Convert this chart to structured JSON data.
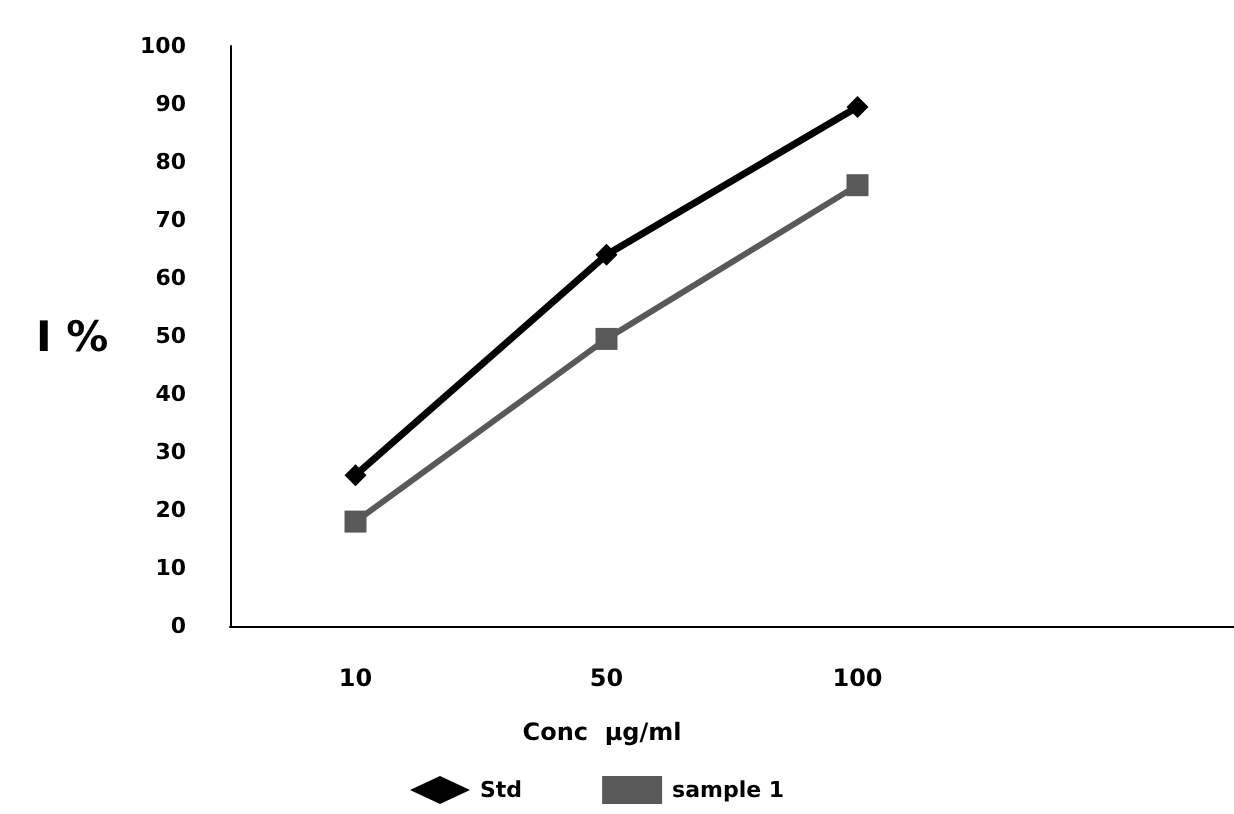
{
  "chart_data": {
    "type": "line",
    "xlabel": "Conc  µg/ml",
    "ylabel": "I %",
    "categories": [
      "10",
      "50",
      "100",
      null
    ],
    "series": [
      {
        "name": "Std",
        "color": "#000000",
        "marker": "diamond",
        "values": [
          26,
          64,
          89.5,
          null
        ]
      },
      {
        "name": "sample 1",
        "color": "#595959",
        "marker": "square",
        "values": [
          18,
          49.5,
          76,
          null
        ]
      }
    ],
    "ylim": [
      0,
      100
    ],
    "yticks": [
      0,
      10,
      20,
      30,
      40,
      50,
      60,
      70,
      80,
      90,
      100
    ],
    "grid": false,
    "legend": "bottom",
    "line_style": "solid"
  }
}
